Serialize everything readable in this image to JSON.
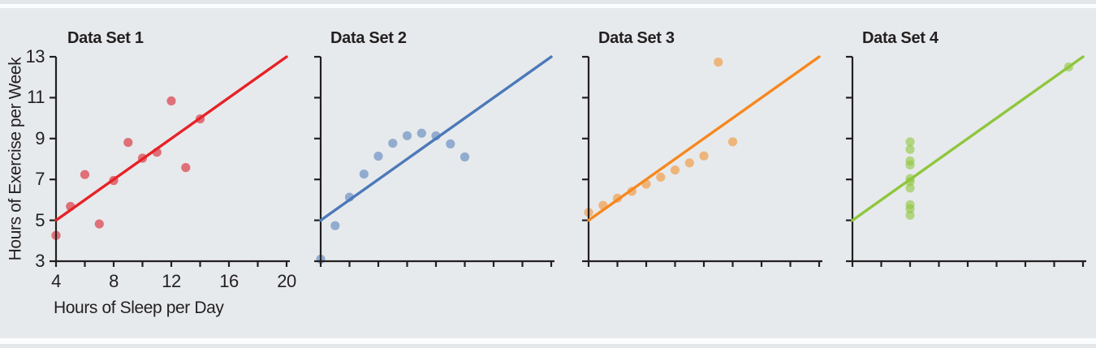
{
  "figure": {
    "background_color": "#e7eaec",
    "border_band_color": "#e3e7ea",
    "border_gap_color": "#fbfcfd",
    "axis_color": "#231f20",
    "text_color": "#231f20"
  },
  "chart_data": [
    {
      "type": "scatter",
      "title": "Data Set 1",
      "xlabel": "Hours of Sleep per Day",
      "ylabel": "Hours of Exercise per Week",
      "xlim": [
        4,
        20
      ],
      "ylim": [
        3,
        13
      ],
      "x_ticks": [
        4,
        6,
        8,
        10,
        12,
        14,
        16,
        18,
        20
      ],
      "x_labeled_ticks": [
        4,
        8,
        12,
        16,
        20
      ],
      "x_tick_labels": [
        "4",
        "8",
        "12",
        "16",
        "20"
      ],
      "y_ticks": [
        13,
        11,
        9,
        7,
        5,
        3
      ],
      "y_tick_labels": [
        "13",
        "11",
        "9",
        "7",
        "5",
        "3"
      ],
      "show_tick_labels": true,
      "grid": false,
      "points": [
        [
          10,
          8.04
        ],
        [
          8,
          6.95
        ],
        [
          13,
          7.58
        ],
        [
          9,
          8.81
        ],
        [
          11,
          8.33
        ],
        [
          14,
          9.96
        ],
        [
          6,
          7.24
        ],
        [
          4,
          4.26
        ],
        [
          12,
          10.84
        ],
        [
          7,
          4.82
        ],
        [
          5,
          5.68
        ]
      ],
      "trend_line": {
        "slope": 0.5,
        "intercept": 3,
        "x_start": 4,
        "x_end": 20
      },
      "line_color": "#e62227",
      "dot_color": "rgba(219,55,66,0.68)"
    },
    {
      "type": "scatter",
      "title": "Data Set 2",
      "xlim": [
        4,
        20
      ],
      "ylim": [
        3,
        13
      ],
      "x_ticks": [
        4,
        6,
        8,
        10,
        12,
        14,
        16,
        18,
        20
      ],
      "y_ticks": [
        13,
        11,
        9,
        7,
        5,
        3
      ],
      "show_tick_labels": false,
      "grid": false,
      "points": [
        [
          10,
          9.14
        ],
        [
          8,
          8.14
        ],
        [
          13,
          8.74
        ],
        [
          9,
          8.77
        ],
        [
          11,
          9.26
        ],
        [
          14,
          8.1
        ],
        [
          6,
          6.13
        ],
        [
          4,
          3.1
        ],
        [
          12,
          9.13
        ],
        [
          7,
          7.26
        ],
        [
          5,
          4.74
        ]
      ],
      "trend_line": {
        "slope": 0.5,
        "intercept": 3,
        "x_start": 4,
        "x_end": 20
      },
      "line_color": "#4c79ba",
      "dot_color": "rgba(77,121,186,0.55)"
    },
    {
      "type": "scatter",
      "title": "Data Set 3",
      "xlim": [
        4,
        20
      ],
      "ylim": [
        3,
        13
      ],
      "x_ticks": [
        4,
        6,
        8,
        10,
        12,
        14,
        16,
        18,
        20
      ],
      "y_ticks": [
        13,
        11,
        9,
        7,
        5,
        3
      ],
      "show_tick_labels": false,
      "grid": false,
      "points": [
        [
          10,
          7.46
        ],
        [
          8,
          6.77
        ],
        [
          13,
          12.74
        ],
        [
          9,
          7.11
        ],
        [
          11,
          7.81
        ],
        [
          14,
          8.84
        ],
        [
          6,
          6.08
        ],
        [
          4,
          5.39
        ],
        [
          12,
          8.15
        ],
        [
          7,
          6.42
        ],
        [
          5,
          5.73
        ]
      ],
      "trend_line": {
        "slope": 0.5,
        "intercept": 3,
        "x_start": 4,
        "x_end": 20
      },
      "line_color": "#f6881f",
      "dot_color": "rgba(244,136,31,0.55)"
    },
    {
      "type": "scatter",
      "title": "Data Set 4",
      "xlim": [
        4,
        20
      ],
      "ylim": [
        3,
        13
      ],
      "x_ticks": [
        4,
        6,
        8,
        10,
        12,
        14,
        16,
        18,
        20
      ],
      "y_ticks": [
        13,
        11,
        9,
        7,
        5,
        3
      ],
      "show_tick_labels": false,
      "grid": false,
      "points": [
        [
          8,
          6.58
        ],
        [
          8,
          5.76
        ],
        [
          8,
          7.71
        ],
        [
          8,
          8.84
        ],
        [
          8,
          8.47
        ],
        [
          8,
          7.04
        ],
        [
          8,
          5.25
        ],
        [
          19,
          12.5
        ],
        [
          8,
          5.56
        ],
        [
          8,
          7.91
        ],
        [
          8,
          6.89
        ]
      ],
      "trend_line": {
        "slope": 0.5,
        "intercept": 3,
        "x_start": 4,
        "x_end": 20
      },
      "line_color": "#8fc63e",
      "dot_color": "rgba(144,198,62,0.6)"
    }
  ]
}
